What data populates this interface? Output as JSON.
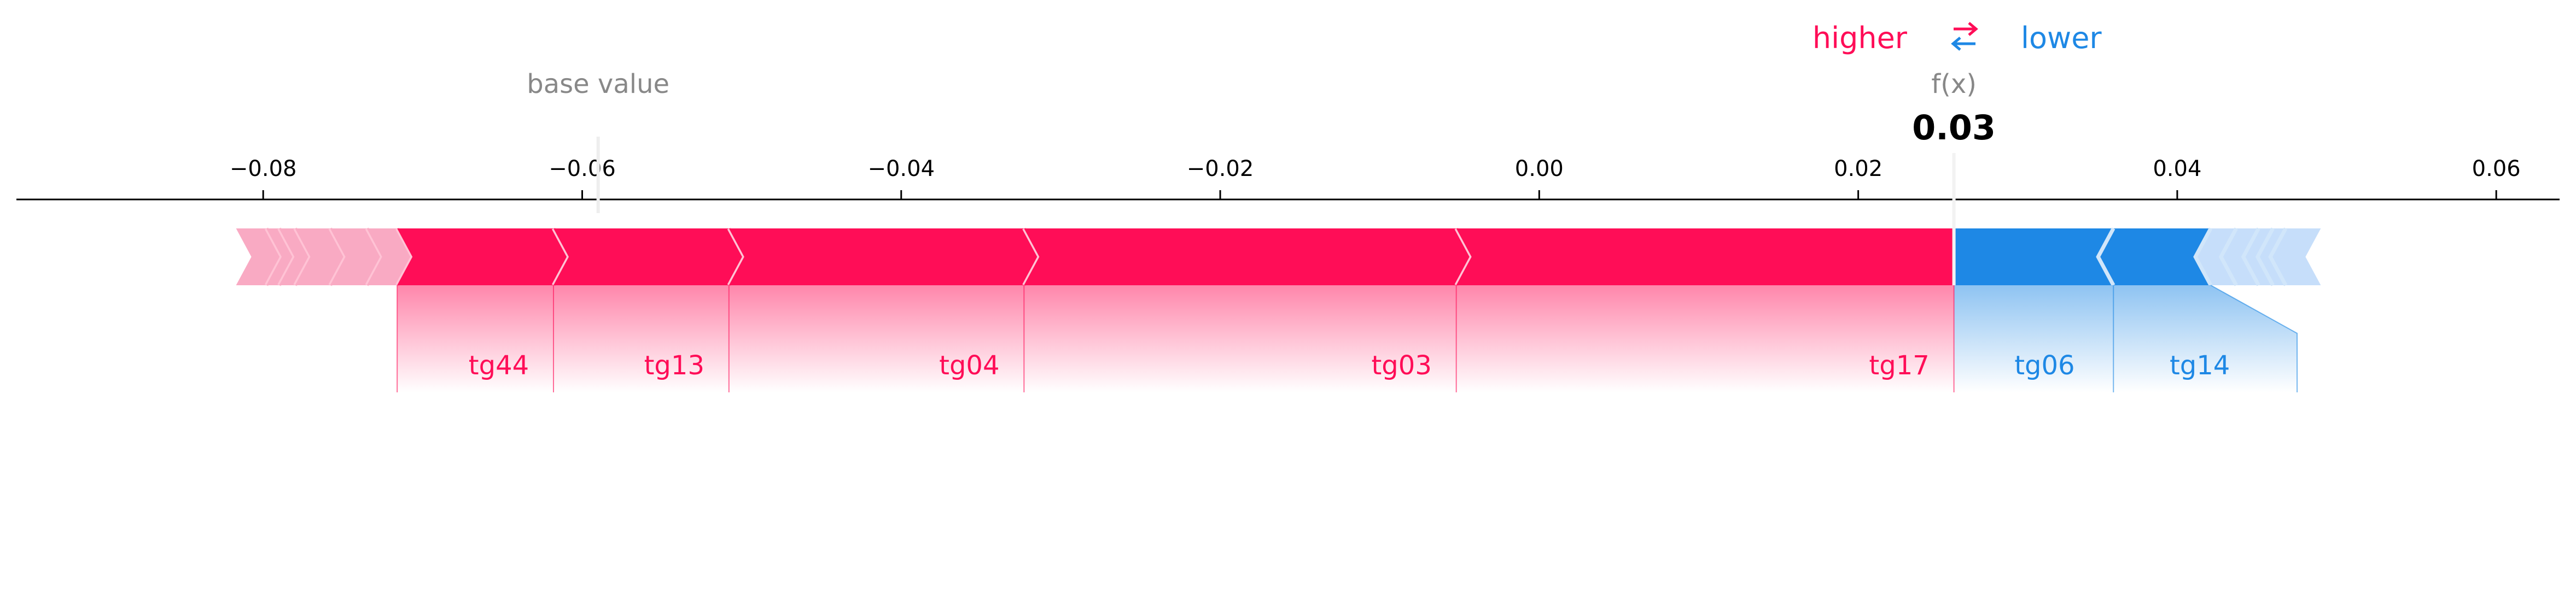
{
  "legend": {
    "higher": "higher",
    "lower": "lower",
    "higher_color": "#ff0d57",
    "lower_color": "#1e88e5",
    "arrow_icon": "swap-arrows-icon"
  },
  "chart_data": {
    "type": "force",
    "base_value_label": "base value",
    "fx_label": "f(x)",
    "base_value": -0.059,
    "fx_value": 0.026,
    "fx_display": "0.03",
    "x_range": [
      -0.0965,
      0.065
    ],
    "ticks": [
      {
        "value": -0.08,
        "label": "−0.08"
      },
      {
        "value": -0.06,
        "label": "−0.06"
      },
      {
        "value": -0.04,
        "label": "−0.04"
      },
      {
        "value": -0.02,
        "label": "−0.02"
      },
      {
        "value": 0.0,
        "label": "0.00"
      },
      {
        "value": 0.02,
        "label": "0.02"
      },
      {
        "value": 0.04,
        "label": "0.04"
      },
      {
        "value": 0.06,
        "label": "0.06"
      }
    ],
    "colors": {
      "positive": "#ff0d57",
      "negative": "#1e88e5"
    },
    "positive_segments": [
      {
        "label": "",
        "from": -0.0805,
        "to": -0.0798
      },
      {
        "label": "",
        "from": -0.0798,
        "to": -0.079
      },
      {
        "label": "",
        "from": -0.079,
        "to": -0.078
      },
      {
        "label": "",
        "from": -0.078,
        "to": -0.0758
      },
      {
        "label": "",
        "from": -0.0758,
        "to": -0.0735
      },
      {
        "label": "",
        "from": -0.0735,
        "to": -0.0716
      },
      {
        "label": "tg44",
        "from": -0.0716,
        "to": -0.0618
      },
      {
        "label": "tg13",
        "from": -0.0618,
        "to": -0.0508
      },
      {
        "label": "tg04",
        "from": -0.0508,
        "to": -0.0323
      },
      {
        "label": "tg03",
        "from": -0.0323,
        "to": -0.0052
      },
      {
        "label": "tg17",
        "from": -0.0052,
        "to": 0.026
      }
    ],
    "negative_segments": [
      {
        "label": "tg06",
        "from": 0.036,
        "to": 0.026
      },
      {
        "label": "tg14",
        "from": 0.0421,
        "to": 0.036
      },
      {
        "label": "",
        "from": 0.0437,
        "to": 0.0421
      },
      {
        "label": "",
        "from": 0.0451,
        "to": 0.0437
      },
      {
        "label": "",
        "from": 0.046,
        "to": 0.0451
      },
      {
        "label": "",
        "from": 0.0468,
        "to": 0.046
      },
      {
        "label": "",
        "from": 0.0478,
        "to": 0.0468
      }
    ]
  }
}
